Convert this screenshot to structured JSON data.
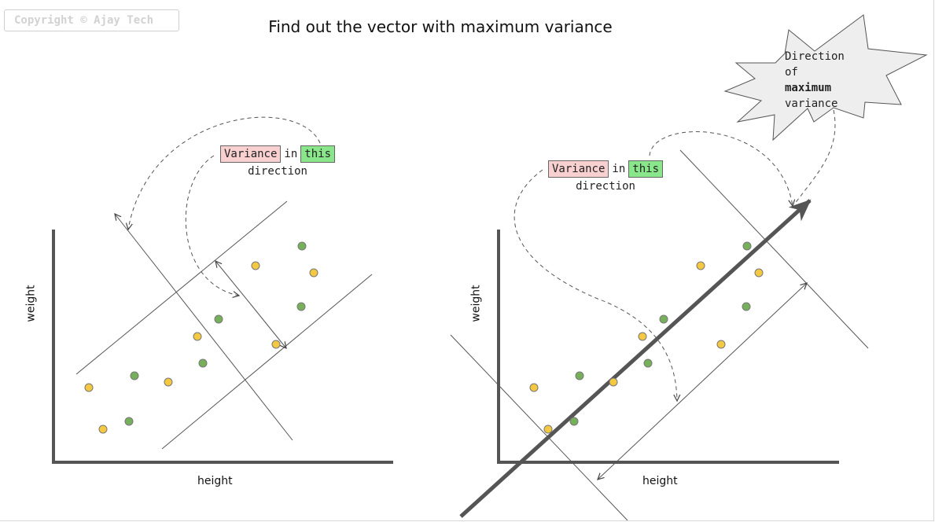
{
  "copyright": "Copyright © Ajay Tech",
  "title": "Find out the vector with maximum variance",
  "left_panel": {
    "xlabel": "height",
    "ylabel": "weight",
    "label_variance": "Variance",
    "label_in": "in",
    "label_this": "this",
    "label_direction": "direction"
  },
  "right_panel": {
    "xlabel": "height",
    "ylabel": "weight",
    "label_variance": "Variance",
    "label_in": "in",
    "label_this": "this",
    "label_direction": "direction"
  },
  "burst": {
    "line1": "Direction",
    "line2": "of",
    "line3": "maximum",
    "line4": "variance"
  },
  "colors": {
    "yellow_point": "#f5c842",
    "green_point": "#77b05a",
    "axis": "#555555",
    "box_red": "#f8d0d0",
    "box_green": "#8ae68a",
    "burst_fill": "#eeeeee"
  }
}
